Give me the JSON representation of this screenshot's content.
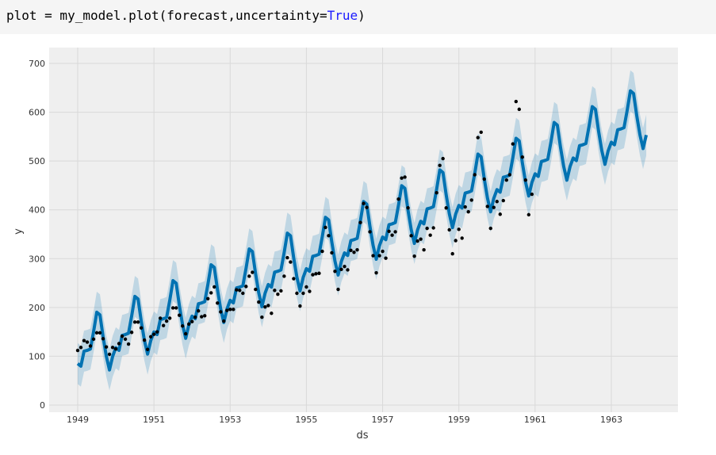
{
  "cell": {
    "code_prefix": "plot = my_model.plot(forecast,uncertainty=",
    "code_keyword": "True",
    "code_suffix": ")"
  },
  "chart_data": {
    "type": "line",
    "title": "",
    "xlabel": "ds",
    "ylabel": "y",
    "xlim": [
      1948.3,
      1964.6
    ],
    "ylim": [
      -15,
      730
    ],
    "grid": true,
    "x_ticks": [
      "1949",
      "1951",
      "1953",
      "1955",
      "1957",
      "1959",
      "1961",
      "1963"
    ],
    "y_ticks": [
      "0",
      "100",
      "200",
      "300",
      "400",
      "500",
      "600",
      "700"
    ],
    "colors": {
      "forecast": "#0072B2",
      "band": "#0072B2",
      "points": "#000000",
      "plot_bg": "#efefef",
      "grid": "#d9d9d9"
    },
    "observed": {
      "start_year": 1949,
      "monthly_values": [
        112,
        118,
        132,
        129,
        121,
        135,
        148,
        148,
        136,
        119,
        104,
        118,
        115,
        126,
        141,
        135,
        125,
        149,
        170,
        170,
        158,
        133,
        114,
        140,
        145,
        150,
        178,
        163,
        172,
        178,
        199,
        199,
        184,
        162,
        146,
        166,
        171,
        180,
        193,
        181,
        183,
        218,
        230,
        242,
        209,
        191,
        172,
        194,
        196,
        196,
        236,
        235,
        229,
        243,
        264,
        272,
        237,
        211,
        180,
        201,
        204,
        188,
        235,
        227,
        234,
        264,
        302,
        293,
        259,
        229,
        203,
        229,
        242,
        233,
        267,
        269,
        270,
        315,
        364,
        347,
        312,
        274,
        237,
        278,
        284,
        277,
        317,
        313,
        318,
        374,
        413,
        405,
        355,
        306,
        271,
        306,
        315,
        301,
        356,
        348,
        355,
        422,
        465,
        467,
        404,
        347,
        305,
        336,
        340,
        318,
        362,
        348,
        363,
        435,
        491,
        505,
        404,
        359,
        310,
        337,
        360,
        342,
        406,
        396,
        420,
        472,
        548,
        559,
        463,
        407,
        362,
        405,
        417,
        391,
        419,
        461,
        472,
        535,
        622,
        606,
        508,
        461,
        390,
        432
      ]
    },
    "forecast": {
      "start_year": 1949,
      "months": 180,
      "trend_start": 112,
      "trend_slope_per_month": 2.7,
      "monthly_seasonal": [
        -27,
        -35,
        -7,
        -8,
        -8,
        25,
        62,
        54,
        6,
        -36,
        -67,
        -42
      ],
      "uncertainty_halfwidth": 42
    }
  }
}
